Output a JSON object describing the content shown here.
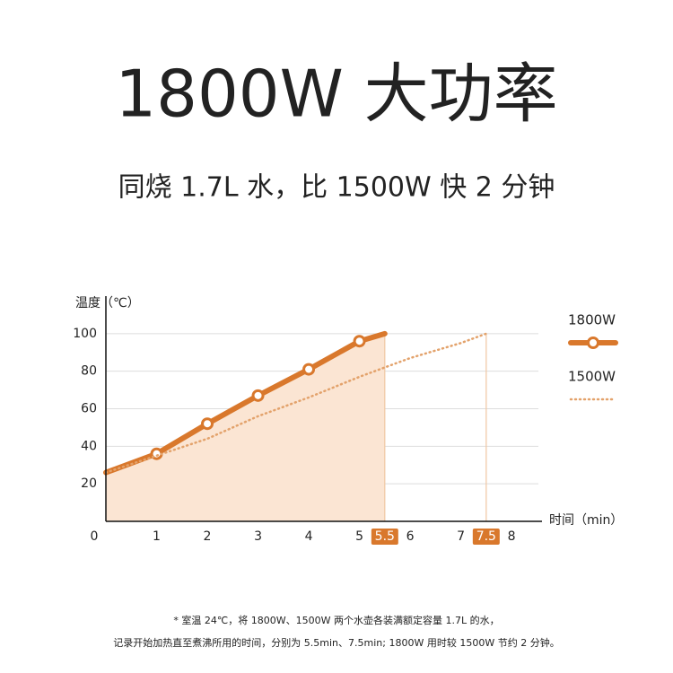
{
  "chart_data": {
    "type": "line",
    "title": "1800W 大功率",
    "subtitle": "同烧 1.7L 水，比 1500W 快 2 分钟",
    "y_label": "温度（℃）",
    "x_label": "时间（min）",
    "xlim": [
      0,
      8.6
    ],
    "ylim": [
      0,
      120
    ],
    "xticks": [
      0,
      1,
      2,
      3,
      4,
      5,
      6,
      7,
      8
    ],
    "yticks": [
      20,
      40,
      60,
      80,
      100
    ],
    "grid": true,
    "legend": "right",
    "markers": [
      5.5,
      7.5
    ],
    "series": [
      {
        "name": "1800W",
        "color": "#d9782c",
        "style": "solid",
        "area": true,
        "x": [
          0,
          1,
          2,
          3,
          4,
          5,
          5.5
        ],
        "values": [
          26,
          36,
          52,
          67,
          81,
          96,
          100
        ]
      },
      {
        "name": "1500W",
        "color": "#e3a26b",
        "style": "dotted",
        "area": false,
        "x": [
          0,
          1,
          2,
          3,
          4,
          5,
          6,
          7,
          7.5
        ],
        "values": [
          26,
          35,
          44,
          56,
          66,
          77,
          87,
          95,
          100
        ]
      }
    ],
    "notes": [
      "* 室温 24℃，将 1800W、1500W 两个水壶各装满额定容量 1.7L 的水，",
      "记录开始加热直至煮沸所用的时间，分别为 5.5min、7.5min; 1800W 用时较 1500W 节约 2 分钟。"
    ]
  }
}
